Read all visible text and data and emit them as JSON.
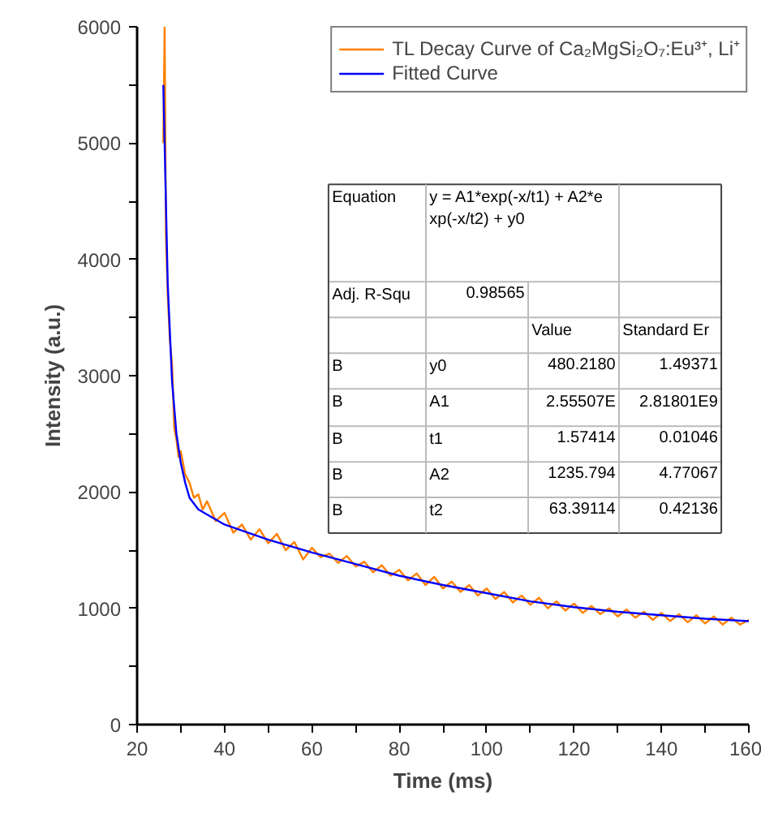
{
  "chart_data": {
    "type": "line",
    "xlabel": "Time (ms)",
    "ylabel": "Intensity (a.u.)",
    "xlim": [
      20,
      160
    ],
    "ylim": [
      0,
      6000
    ],
    "xticks": [
      20,
      {
        "value": 30,
        "label": null
      },
      40,
      {
        "value": 50,
        "label": null
      },
      60,
      {
        "value": 70,
        "label": null
      },
      80,
      {
        "value": 90,
        "label": null
      },
      100,
      {
        "value": 110,
        "label": null
      },
      120,
      {
        "value": 130,
        "label": null
      },
      140,
      {
        "value": 150,
        "label": null
      },
      160
    ],
    "yticks": [
      0,
      {
        "value": 500,
        "label": null
      },
      1000,
      {
        "value": 1500,
        "label": null
      },
      2000,
      {
        "value": 2500,
        "label": null
      },
      3000,
      {
        "value": 3500,
        "label": null
      },
      4000,
      {
        "value": 4500,
        "label": null
      },
      5000,
      {
        "value": 5500,
        "label": null
      },
      6000
    ],
    "grid": false,
    "legend": "top right",
    "marker": "none",
    "line_style": "solid",
    "series": [
      {
        "name": "TL Decay Curve of Ca₂MgSi₂O₇:Eu³⁺, Li⁺",
        "color": "#ff8000",
        "x": [
          26,
          26.3,
          26.6,
          27,
          27.5,
          28,
          28.5,
          29,
          29.5,
          30,
          31,
          32,
          33,
          34,
          35,
          36,
          38,
          40,
          42,
          44,
          46,
          48,
          50,
          52,
          54,
          56,
          58,
          60,
          62,
          64,
          66,
          68,
          70,
          72,
          74,
          76,
          78,
          80,
          82,
          84,
          86,
          88,
          90,
          92,
          94,
          96,
          98,
          100,
          102,
          104,
          106,
          108,
          110,
          112,
          114,
          116,
          118,
          120,
          122,
          124,
          126,
          128,
          130,
          132,
          134,
          136,
          138,
          140,
          142,
          144,
          146,
          148,
          150,
          152,
          154,
          156,
          158,
          160
        ],
        "values": [
          5000,
          6000,
          4200,
          3700,
          3300,
          3100,
          2550,
          2450,
          2300,
          2350,
          2150,
          2080,
          1950,
          1980,
          1850,
          1920,
          1750,
          1820,
          1650,
          1720,
          1590,
          1680,
          1560,
          1640,
          1500,
          1570,
          1420,
          1520,
          1440,
          1470,
          1390,
          1450,
          1360,
          1400,
          1310,
          1370,
          1280,
          1330,
          1240,
          1300,
          1200,
          1270,
          1170,
          1230,
          1140,
          1200,
          1110,
          1170,
          1080,
          1140,
          1050,
          1110,
          1030,
          1090,
          1000,
          1060,
          980,
          1040,
          960,
          1020,
          950,
          1000,
          930,
          990,
          920,
          970,
          900,
          960,
          890,
          950,
          880,
          940,
          870,
          930,
          860,
          920,
          860,
          900
        ]
      },
      {
        "name": "Fitted Curve",
        "color": "#0000ff",
        "x": [
          26,
          27,
          28,
          29,
          30,
          31,
          32,
          34,
          40,
          50,
          60,
          70,
          80,
          90,
          100,
          110,
          120,
          130,
          140,
          150,
          160
        ],
        "values": [
          5500,
          3800,
          2950,
          2500,
          2250,
          2080,
          1950,
          1850,
          1720,
          1590,
          1480,
          1380,
          1280,
          1200,
          1130,
          1060,
          1010,
          970,
          940,
          910,
          890
        ]
      }
    ],
    "annotations": [
      "Equation",
      "y = A1*exp(-x/t1) + A2*e",
      "xp(-x/t2) + y0",
      "Adj. R-Squ",
      "0.98565",
      "Value",
      "Standard Er",
      "B",
      "y0",
      "480.2180",
      "1.49371",
      "B",
      "A1",
      "2.55507E",
      "2.81801E9",
      "B",
      "t1",
      "1.57414",
      "0.01046",
      "B",
      "A2",
      "1235.794",
      "4.77067",
      "B",
      "t2",
      "63.39114",
      "0.42136"
    ]
  }
}
